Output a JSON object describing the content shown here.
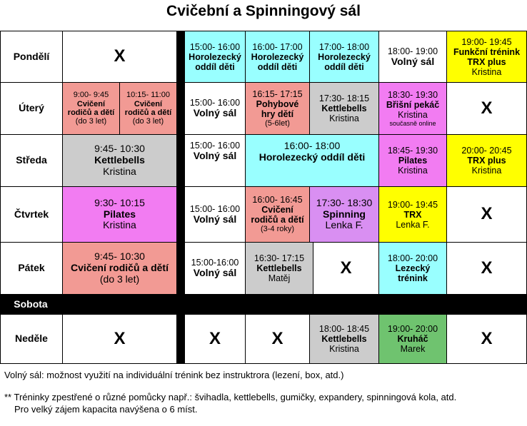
{
  "title": "Cvičební a Spinningový sál",
  "days": {
    "mon": "Pondělí",
    "tue": "Úterý",
    "wed": "Středa",
    "thu": "Čtvrtek",
    "fri": "Pátek",
    "sat": "Sobota",
    "sun": "Neděle"
  },
  "x": "X",
  "colors": {
    "cyan": "#99ffff",
    "yellow": "#ffff00",
    "salmon": "#f29a94",
    "grey": "#cccccc",
    "pink": "#f27cf2",
    "lilac": "#d98ff2",
    "green": "#6fc36f",
    "separator": "#000000"
  },
  "mon": {
    "c1": {
      "time": "15:00- 16:00",
      "name1": "Horolezecký",
      "name2": "oddíl děti"
    },
    "c2": {
      "time": "16:00- 17:00",
      "name1": "Horolezecký",
      "name2": "oddíl děti"
    },
    "c3": {
      "time": "17:00- 18:00",
      "name1": "Horolezecký",
      "name2": "oddíl děti"
    },
    "c4": {
      "time": "18:00- 19:00",
      "name": "Volný sál"
    },
    "c5": {
      "time": "19:00- 19:45",
      "name1": "Funkční trénink",
      "name2": "TRX plus",
      "coach": "Kristina"
    }
  },
  "tue": {
    "a": {
      "time": "9:00- 9:45",
      "name1": "Cvičení",
      "name2": "rodičů a dětí",
      "note": "(do 3 let)"
    },
    "b": {
      "time": "10:15- 11:00",
      "name1": "Cvičení",
      "name2": "rodičů a dětí",
      "note": "(do 3 let)"
    },
    "c1": {
      "time": "15:00- 16:00",
      "name": "Volný sál"
    },
    "c2": {
      "time": "16:15- 17:15",
      "name1": "Pohybové",
      "name2": "hry dětí",
      "note": "(5-6let)"
    },
    "c3": {
      "time": "17:30- 18:15",
      "name": "Kettlebells",
      "coach": "Kristina"
    },
    "c4": {
      "time": "18:30- 19:30",
      "name": "Břišní pekáč",
      "coach": "Kristina",
      "extra": "současně online"
    }
  },
  "wed": {
    "morning": {
      "time": "9:45- 10:30",
      "name": "Kettlebells",
      "coach": "Kristina"
    },
    "c1": {
      "time": "15:00- 16:00",
      "name": "Volný sál"
    },
    "c2": {
      "time": "16:00- 18:00",
      "name": "Horolezecký oddíl děti"
    },
    "c4": {
      "time": "18:45- 19:30",
      "name": "Pilates",
      "coach": "Kristina"
    },
    "c5": {
      "time": "20:00- 20:45",
      "name": "TRX plus",
      "coach": "Kristina"
    }
  },
  "thu": {
    "morning": {
      "time": "9:30- 10:15",
      "name": "Pilates",
      "coach": "Kristina"
    },
    "c1": {
      "time": "15:00- 16:00",
      "name": "Volný sál"
    },
    "c2": {
      "time": "16:00- 16:45",
      "name1": "Cvičení",
      "name2": "rodičů a dětí",
      "note": "(3-4 roky)"
    },
    "c3": {
      "time": "17:30- 18:30",
      "name": "Spinning",
      "coach": "Lenka F."
    },
    "c4": {
      "time": "19:00- 19:45",
      "name": "TRX",
      "coach": "Lenka F."
    }
  },
  "fri": {
    "morning": {
      "time": "9:45- 10:30",
      "name": "Cvičení rodičů a dětí",
      "note": "(do 3 let)"
    },
    "c1": {
      "time": "15:00-16:00",
      "name": "Volný sál"
    },
    "c2": {
      "time": "16:30- 17:15",
      "name": "Kettlebells",
      "coach": "Matěj"
    },
    "c4": {
      "time": "18:00- 20:00",
      "name1": "Lezecký",
      "name2": "trénink"
    }
  },
  "sun": {
    "c3": {
      "time": "18:00- 18:45",
      "name": "Kettlebells",
      "coach": "Kristina"
    },
    "c4": {
      "time": "19:00- 20:00",
      "name": "Kruháč",
      "coach": "Marek"
    }
  },
  "notes": {
    "line1": "Volný sál: možnost využití na individuální trénink bez instruktrora (lezení, box, atd.)",
    "line2": "** Tréninky zpestřené o různé pomůcky např.: švihadla, kettlebells, gumičky, expandery, spinningová kola, atd.",
    "line3": "Pro velký zájem kapacita navýšena o 6 míst."
  }
}
